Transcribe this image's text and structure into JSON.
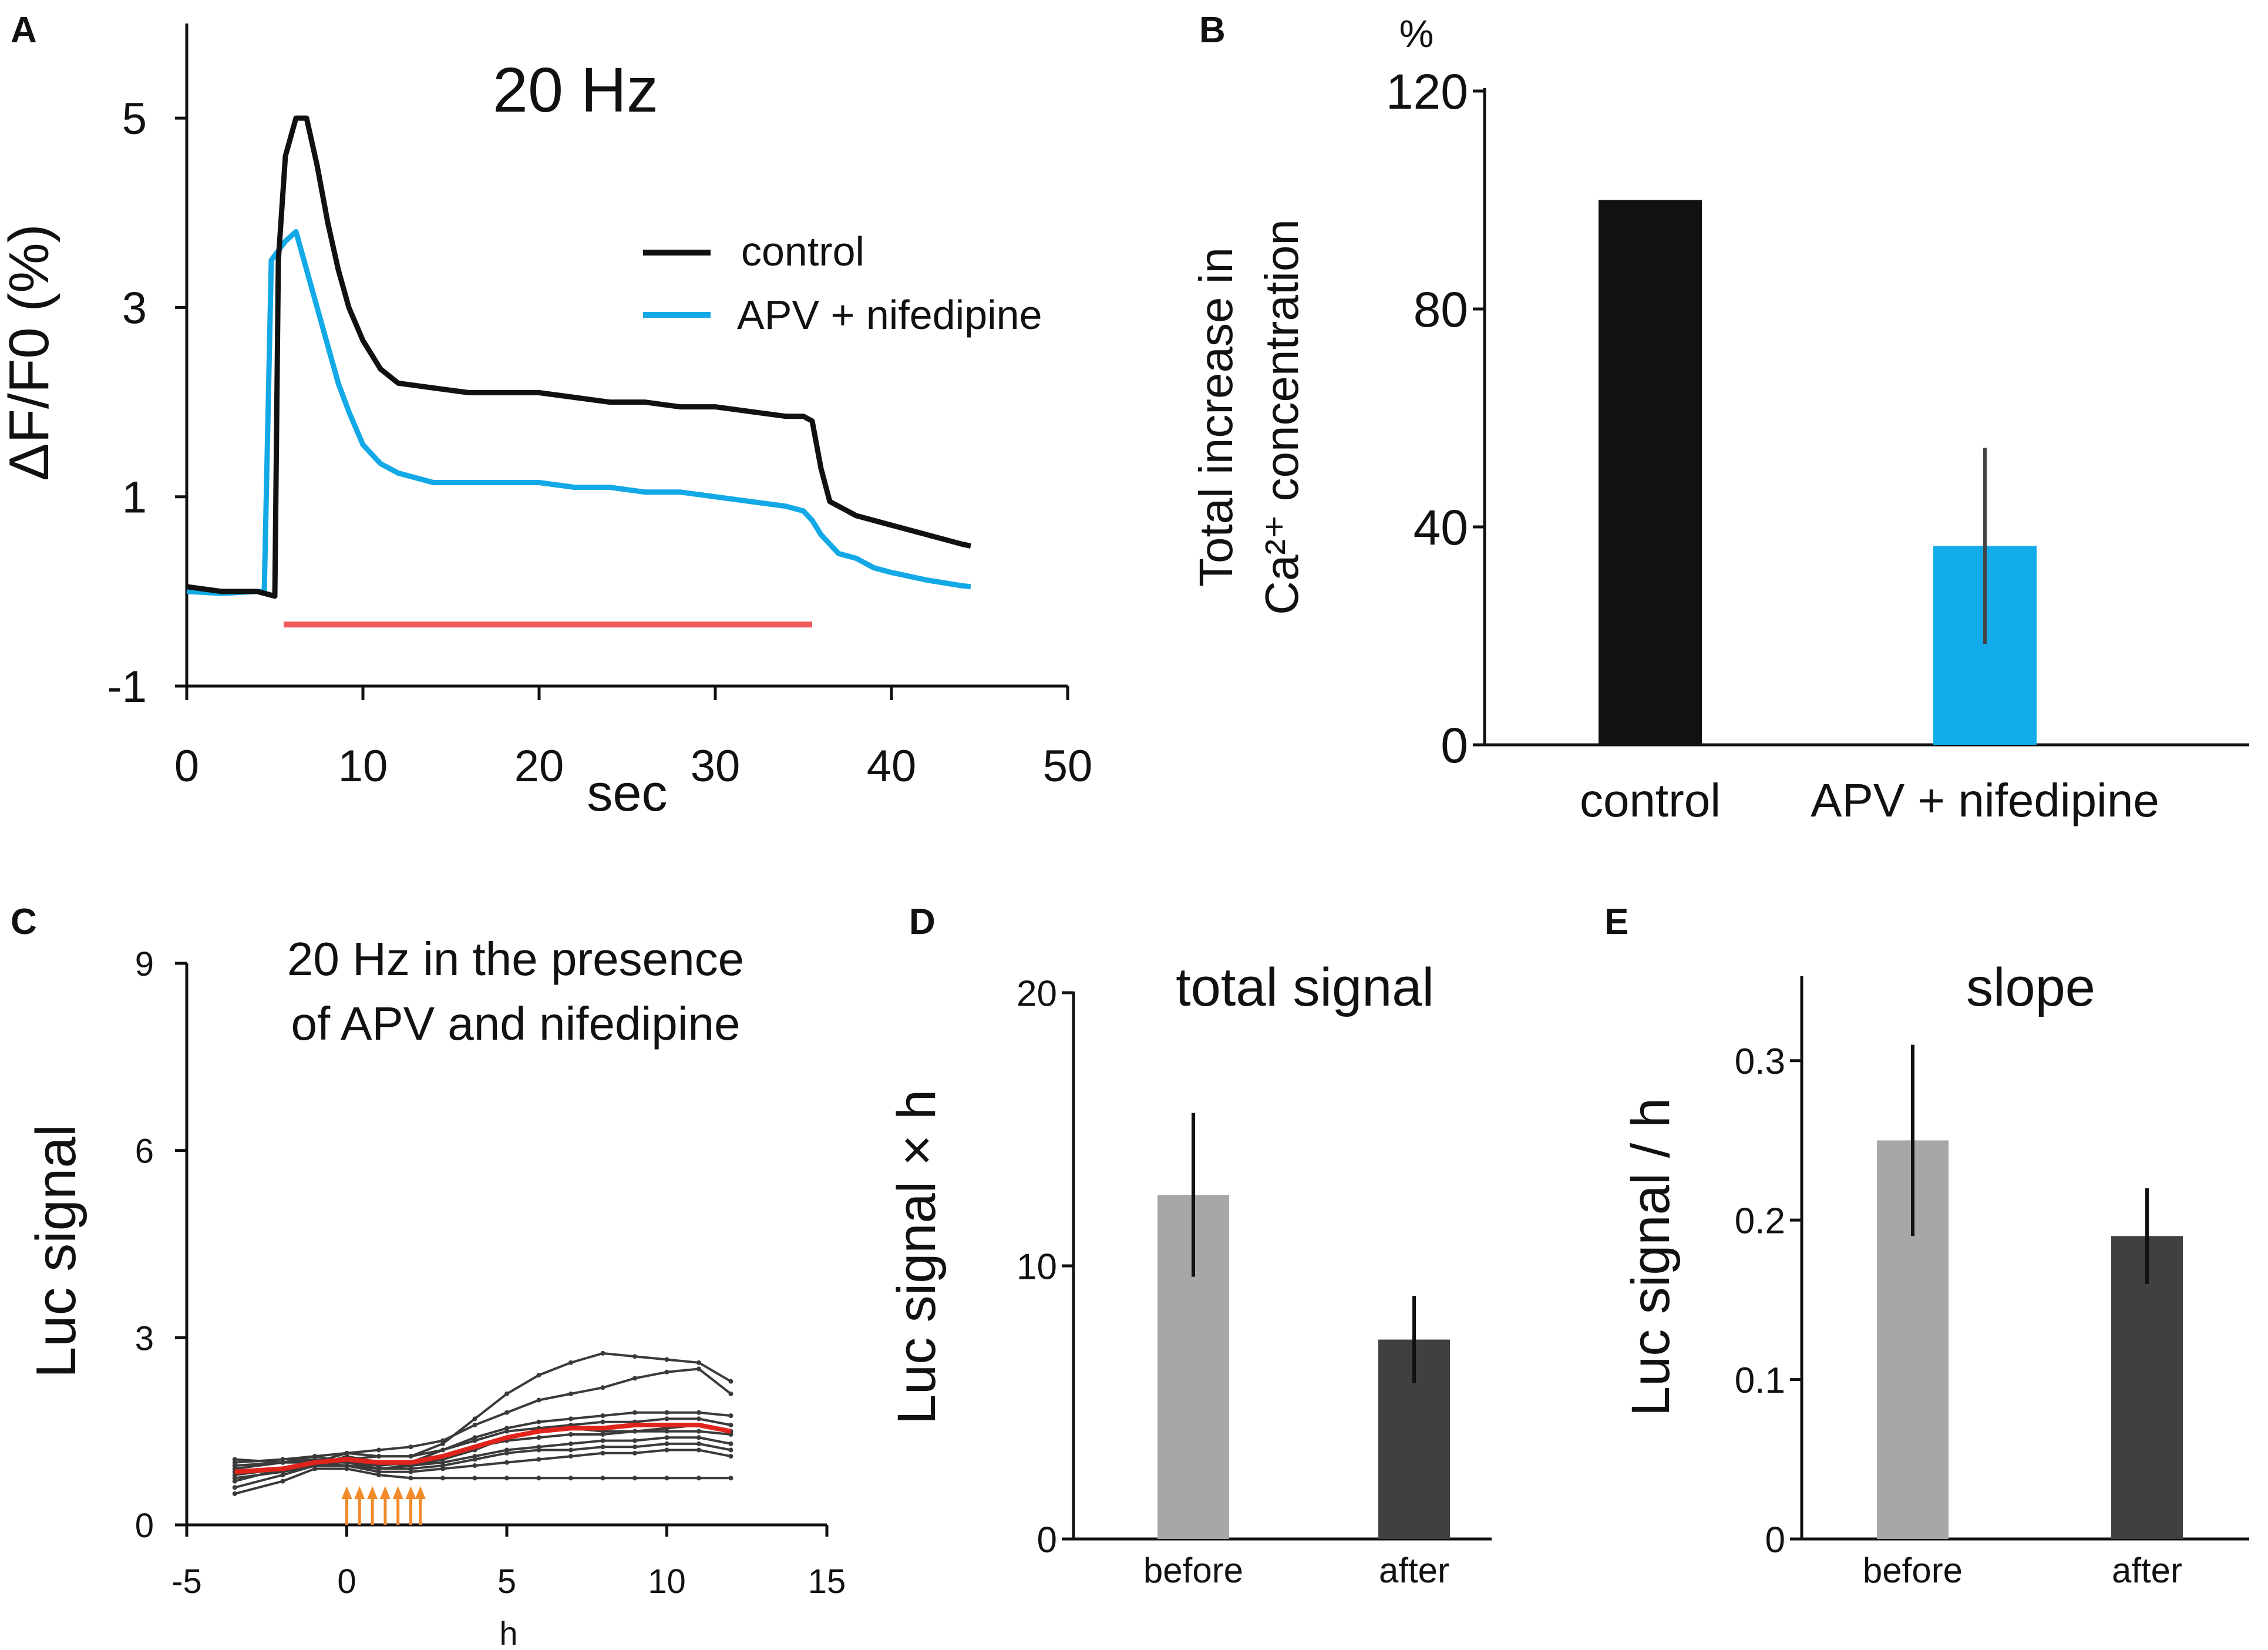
{
  "colors": {
    "control": "#111111",
    "apv": "#12a9e6",
    "stim": "#ef5a5a",
    "mean": "#e0241c",
    "arrow": "#f08a2a",
    "bar_light": "#a9a7a6",
    "bar_dark": "#404040",
    "bar_blue": "#12acea"
  },
  "chart_data": [
    {
      "panel": "A",
      "type": "line",
      "title": "20 Hz",
      "xlabel": "sec",
      "ylabel": "ΔF/F0 (%)",
      "xlim": [
        0,
        50
      ],
      "ylim": [
        -1,
        6
      ],
      "x_ticks": [
        0,
        10,
        20,
        30,
        40,
        50
      ],
      "y_ticks": [
        -1,
        1,
        3,
        5
      ],
      "legend": [
        "control",
        "APV + nifedipine"
      ],
      "stimulus": {
        "start": 5.5,
        "end": 35.5,
        "level": -0.35
      },
      "series": [
        {
          "name": "control",
          "x": [
            0,
            2,
            4,
            5,
            5.2,
            5.6,
            6.2,
            6.8,
            7.4,
            8,
            8.6,
            9.2,
            10,
            11,
            12,
            14,
            16,
            18,
            20,
            22,
            24,
            26,
            28,
            30,
            32,
            34,
            35,
            35.5,
            36,
            36.5,
            37,
            38,
            39,
            40,
            42,
            44,
            44.5
          ],
          "y": [
            0.05,
            0,
            0,
            -0.05,
            3.5,
            4.6,
            5.0,
            5.0,
            4.5,
            3.9,
            3.4,
            3.0,
            2.65,
            2.35,
            2.2,
            2.15,
            2.1,
            2.1,
            2.1,
            2.05,
            2.0,
            2.0,
            1.95,
            1.95,
            1.9,
            1.85,
            1.85,
            1.8,
            1.3,
            0.95,
            0.9,
            0.8,
            0.75,
            0.7,
            0.6,
            0.5,
            0.48
          ]
        },
        {
          "name": "APV + nifedipine",
          "x": [
            0,
            2,
            4,
            4.4,
            4.8,
            5.2,
            5.6,
            6.2,
            6.8,
            7.4,
            8,
            8.6,
            9.2,
            10,
            11,
            12,
            14,
            16,
            18,
            20,
            22,
            24,
            26,
            28,
            30,
            32,
            34,
            35,
            35.5,
            36,
            37,
            38,
            39,
            40,
            42,
            44,
            44.5
          ],
          "y": [
            0,
            -0.02,
            0,
            0,
            3.5,
            3.6,
            3.7,
            3.8,
            3.4,
            3.0,
            2.6,
            2.2,
            1.9,
            1.55,
            1.35,
            1.25,
            1.15,
            1.15,
            1.15,
            1.15,
            1.1,
            1.1,
            1.05,
            1.05,
            1.0,
            0.95,
            0.9,
            0.85,
            0.75,
            0.6,
            0.4,
            0.35,
            0.25,
            0.2,
            0.12,
            0.06,
            0.05
          ]
        }
      ]
    },
    {
      "panel": "B",
      "type": "bar",
      "ylabel": [
        "Total increase in",
        "Ca²⁺ concentration"
      ],
      "unit": "%",
      "categories": [
        "control",
        "APV + nifedipine"
      ],
      "values": [
        100,
        36.5
      ],
      "errors": [
        0,
        18
      ],
      "ylim": [
        0,
        120
      ],
      "y_ticks": [
        0,
        40,
        80,
        120
      ]
    },
    {
      "panel": "C",
      "type": "line",
      "title": [
        "20 Hz in the presence",
        "of APV and nifedipine"
      ],
      "xlabel": "h",
      "ylabel": "Luc signal",
      "xlim": [
        -5,
        15
      ],
      "ylim": [
        0,
        9
      ],
      "x_ticks": [
        -5,
        0,
        5,
        10,
        15
      ],
      "y_ticks": [
        0,
        3,
        6,
        9
      ],
      "stim_arrows_h": [
        0,
        0.4,
        0.8,
        1.2,
        1.6,
        2.0,
        2.3
      ],
      "x": [
        -3.5,
        -2,
        -1,
        0,
        1,
        2,
        3,
        4,
        5,
        6,
        7,
        8,
        9,
        10,
        11,
        12
      ],
      "series": [
        {
          "name": "cell-1",
          "values": [
            0.9,
            1.0,
            1.1,
            1.15,
            1.1,
            1.1,
            1.3,
            1.7,
            2.1,
            2.4,
            2.6,
            2.75,
            2.7,
            2.65,
            2.6,
            2.3
          ]
        },
        {
          "name": "cell-2",
          "values": [
            0.7,
            0.9,
            1.0,
            1.15,
            1.2,
            1.25,
            1.35,
            1.6,
            1.8,
            2.0,
            2.1,
            2.2,
            2.35,
            2.45,
            2.5,
            2.1
          ]
        },
        {
          "name": "cell-3",
          "values": [
            1.0,
            1.05,
            1.1,
            1.0,
            0.95,
            1.0,
            1.2,
            1.4,
            1.55,
            1.65,
            1.7,
            1.75,
            1.8,
            1.8,
            1.8,
            1.75
          ]
        },
        {
          "name": "cell-4",
          "values": [
            0.8,
            0.9,
            1.0,
            1.05,
            1.1,
            1.1,
            1.2,
            1.35,
            1.5,
            1.55,
            1.6,
            1.65,
            1.65,
            1.7,
            1.7,
            1.6
          ]
        },
        {
          "name": "cell-5",
          "values": [
            1.05,
            1.0,
            1.0,
            0.95,
            0.9,
            0.95,
            1.05,
            1.2,
            1.4,
            1.5,
            1.55,
            1.5,
            1.5,
            1.55,
            1.6,
            1.5
          ]
        },
        {
          "name": "cell-6",
          "values": [
            0.85,
            0.9,
            1.0,
            1.0,
            0.95,
            1.0,
            1.1,
            1.25,
            1.35,
            1.4,
            1.45,
            1.45,
            1.5,
            1.5,
            1.5,
            1.45
          ]
        },
        {
          "name": "cell-7",
          "values": [
            0.6,
            0.8,
            0.95,
            1.1,
            1.0,
            0.95,
            1.0,
            1.1,
            1.2,
            1.25,
            1.3,
            1.35,
            1.35,
            1.4,
            1.4,
            1.3
          ]
        },
        {
          "name": "cell-8",
          "values": [
            0.95,
            1.0,
            1.05,
            1.0,
            0.9,
            0.9,
            0.95,
            1.05,
            1.15,
            1.2,
            1.2,
            1.25,
            1.25,
            1.3,
            1.3,
            1.2
          ]
        },
        {
          "name": "cell-9",
          "values": [
            0.75,
            0.85,
            0.95,
            0.95,
            0.85,
            0.85,
            0.9,
            0.95,
            1.0,
            1.05,
            1.1,
            1.15,
            1.15,
            1.2,
            1.2,
            1.1
          ]
        },
        {
          "name": "cell-10",
          "values": [
            0.5,
            0.7,
            0.9,
            0.9,
            0.8,
            0.75,
            0.75,
            0.75,
            0.75,
            0.75,
            0.75,
            0.75,
            0.75,
            0.75,
            0.75,
            0.75
          ]
        },
        {
          "name": "mean",
          "values": [
            0.85,
            0.9,
            1.0,
            1.05,
            1.0,
            1.0,
            1.1,
            1.25,
            1.4,
            1.5,
            1.55,
            1.55,
            1.6,
            1.6,
            1.6,
            1.5
          ]
        }
      ]
    },
    {
      "panel": "D",
      "type": "bar",
      "title": "total signal",
      "ylabel": "Luc signal × h",
      "categories": [
        "before",
        "after"
      ],
      "values": [
        12.6,
        7.3
      ],
      "errors": [
        3.0,
        1.6
      ],
      "ylim": [
        0,
        20
      ],
      "y_ticks": [
        0,
        10,
        20
      ]
    },
    {
      "panel": "E",
      "type": "bar",
      "title": "slope",
      "ylabel": "Luc signal / h",
      "categories": [
        "before",
        "after"
      ],
      "values": [
        0.25,
        0.19
      ],
      "errors": [
        0.06,
        0.03
      ],
      "ylim": [
        0,
        0.35
      ],
      "y_ticks": [
        0,
        0.1,
        0.2,
        0.3
      ],
      "y_tick_labels": [
        "0",
        "0.1",
        "0.2",
        "0.3"
      ]
    }
  ]
}
